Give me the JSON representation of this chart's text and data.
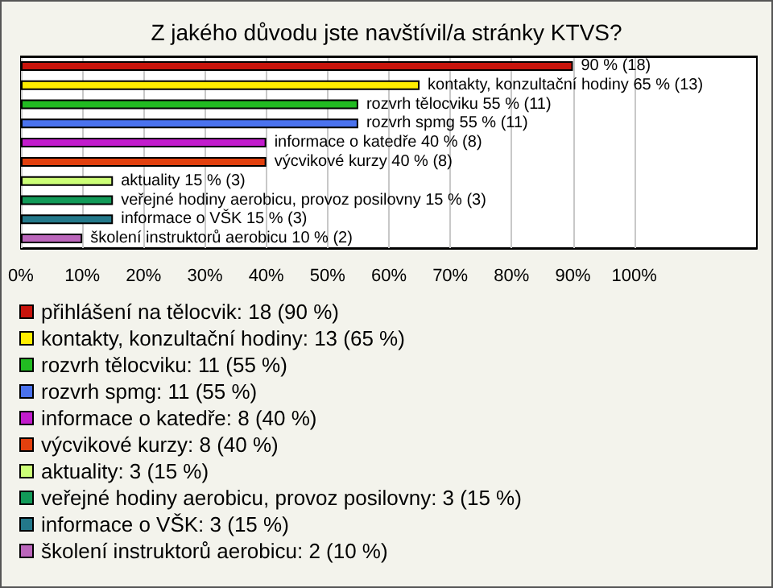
{
  "chart_data": {
    "type": "bar",
    "orientation": "horizontal",
    "stacked": true,
    "title": "Z jakého důvodu jste navštívil/a stránky KTVS?",
    "categories": [
      null,
      null,
      null,
      null,
      null,
      null,
      null,
      null,
      null,
      null
    ],
    "series": [
      {
        "name": "přihlášení na tělocvik: 18 (90 %)",
        "color": "#c8140c",
        "values": [
          90,
          null,
          null,
          null,
          null,
          null,
          null,
          null,
          null,
          null
        ],
        "value_labels": [
          "90 % (18)",
          null,
          null,
          null,
          null,
          null,
          null,
          null,
          null,
          null
        ]
      },
      {
        "name": "kontakty, konzultační hodiny: 13 (65 %)",
        "color": "#ffee00",
        "values": [
          null,
          65,
          null,
          null,
          null,
          null,
          null,
          null,
          null,
          null
        ],
        "value_labels": [
          null,
          "kontakty, konzultační hodiny 65 % (13)",
          null,
          null,
          null,
          null,
          null,
          null,
          null,
          null
        ]
      },
      {
        "name": "rozvrh tělocviku: 11 (55 %)",
        "color": "#22bb22",
        "values": [
          null,
          null,
          55,
          null,
          null,
          null,
          null,
          null,
          null,
          null
        ],
        "value_labels": [
          null,
          null,
          "rozvrh tělocviku 55 % (11)",
          null,
          null,
          null,
          null,
          null,
          null,
          null
        ]
      },
      {
        "name": "rozvrh spmg: 11 (55 %)",
        "color": "#4a72ee",
        "values": [
          null,
          null,
          null,
          55,
          null,
          null,
          null,
          null,
          null,
          null
        ],
        "value_labels": [
          null,
          null,
          null,
          "rozvrh spmg 55 % (11)",
          null,
          null,
          null,
          null,
          null,
          null
        ]
      },
      {
        "name": "informace o katedře: 8 (40 %)",
        "color": "#c21ccc",
        "values": [
          null,
          null,
          null,
          null,
          40,
          null,
          null,
          null,
          null,
          null
        ],
        "value_labels": [
          null,
          null,
          null,
          null,
          "informace o katedře 40 % (8)",
          null,
          null,
          null,
          null,
          null
        ]
      },
      {
        "name": "výcvikové kurzy: 8 (40 %)",
        "color": "#e2400e",
        "values": [
          null,
          null,
          null,
          null,
          null,
          40,
          null,
          null,
          null,
          null
        ],
        "value_labels": [
          null,
          null,
          null,
          null,
          null,
          "výcvikové kurzy 40 % (8)",
          null,
          null,
          null,
          null
        ]
      },
      {
        "name": "aktuality: 3 (15 %)",
        "color": "#ccff77",
        "values": [
          null,
          null,
          null,
          null,
          null,
          null,
          15,
          null,
          null,
          null
        ],
        "value_labels": [
          null,
          null,
          null,
          null,
          null,
          null,
          "aktuality 15 % (3)",
          null,
          null,
          null
        ]
      },
      {
        "name": "veřejné hodiny aerobicu, provoz posilovny: 3 (15 %)",
        "color": "#129a58",
        "values": [
          null,
          null,
          null,
          null,
          null,
          null,
          null,
          15,
          null,
          null
        ],
        "value_labels": [
          null,
          null,
          null,
          null,
          null,
          null,
          null,
          "veřejné hodiny aerobicu, provoz posilovny 15 % (3)",
          null,
          null
        ]
      },
      {
        "name": "informace o VŠK: 3 (15 %)",
        "color": "#23788a",
        "values": [
          null,
          null,
          null,
          null,
          null,
          null,
          null,
          null,
          15,
          null
        ],
        "value_labels": [
          null,
          null,
          null,
          null,
          null,
          null,
          null,
          null,
          "informace o VŠK 15 % (3)",
          null
        ]
      },
      {
        "name": "školení instruktorů aerobicu: 2 (10 %)",
        "color": "#bb66bb",
        "values": [
          null,
          null,
          null,
          null,
          null,
          null,
          null,
          null,
          null,
          10
        ],
        "value_labels": [
          null,
          null,
          null,
          null,
          null,
          null,
          null,
          null,
          null,
          "školení instruktorů aerobicu 10 % (2)"
        ]
      }
    ],
    "xlim": [
      0,
      120
    ],
    "xticks": [
      {
        "value": 0,
        "label": "0%"
      },
      {
        "value": 10,
        "label": "10%"
      },
      {
        "value": 20,
        "label": "20%"
      },
      {
        "value": 30,
        "label": "30%"
      },
      {
        "value": 40,
        "label": "40%"
      },
      {
        "value": 50,
        "label": "50%"
      },
      {
        "value": 60,
        "label": "60%"
      },
      {
        "value": 70,
        "label": "70%"
      },
      {
        "value": 80,
        "label": "80%"
      },
      {
        "value": 90,
        "label": "90%"
      },
      {
        "value": 100,
        "label": "100%"
      }
    ],
    "grid": "x",
    "legend": "bottom"
  }
}
